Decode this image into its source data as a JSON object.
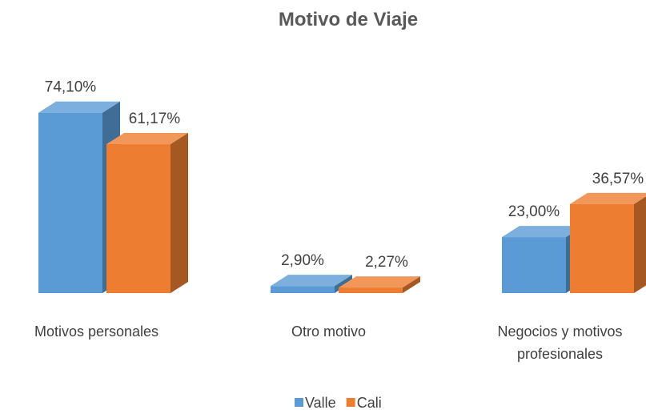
{
  "chart_data": {
    "type": "bar3d",
    "title": "Motivo de Viaje",
    "categories": [
      "Motivos personales",
      "Otro motivo",
      "Negocios y motivos profesionales"
    ],
    "series": [
      {
        "name": "Valle",
        "color": "#5b9bd5",
        "values": [
          74.1,
          2.9,
          23.0
        ],
        "value_labels": [
          "74,10%",
          "2,90%",
          "23,00%"
        ]
      },
      {
        "name": "Cali",
        "color": "#ed7d31",
        "values": [
          61.17,
          2.27,
          36.57
        ],
        "value_labels": [
          "61,17%",
          "2,27%",
          "36,57%"
        ]
      }
    ],
    "legend": "bottom"
  }
}
